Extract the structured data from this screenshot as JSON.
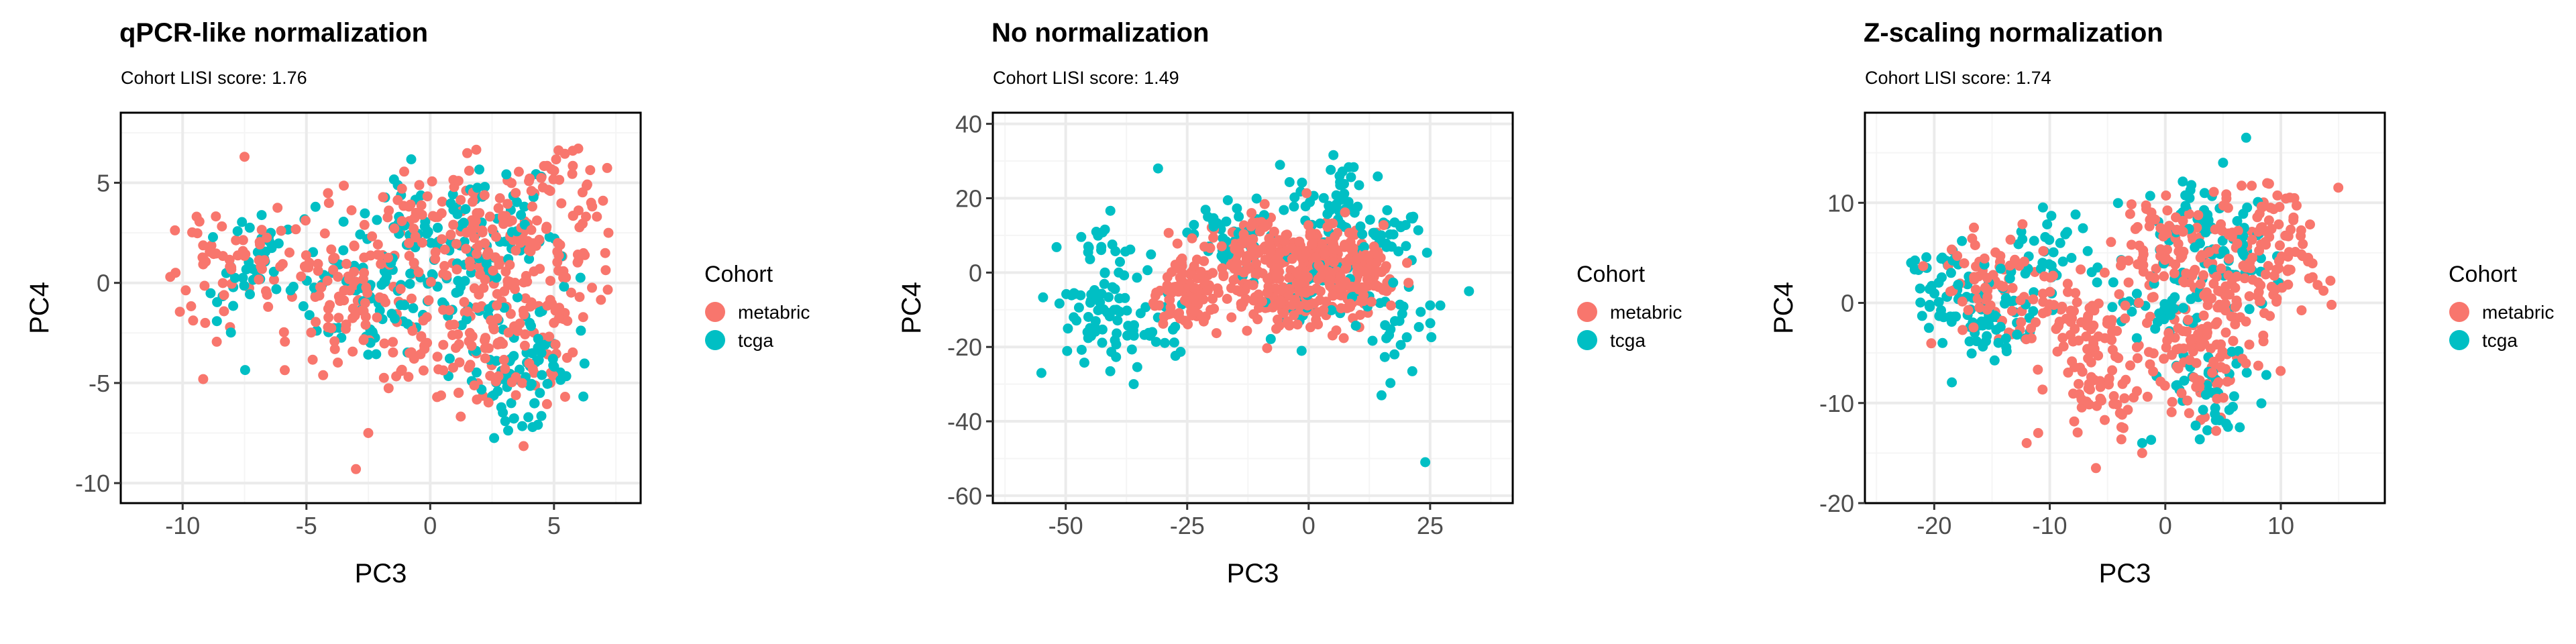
{
  "colors": {
    "metabric": "#F8766D",
    "tcga": "#00BFC4",
    "grid_major": "#ebebeb",
    "grid_minor": "#f5f5f5",
    "panel_border": "#000000"
  },
  "chart_data": [
    {
      "type": "scatter",
      "title": "qPCR-like normalization",
      "subtitle": "Cohort LISI score: 1.76",
      "xlabel": "PC3",
      "ylabel": "PC4",
      "xlim": [
        -12.5,
        8.5
      ],
      "ylim": [
        -11,
        8.5
      ],
      "xticks": [
        -10,
        -5,
        0,
        5
      ],
      "yticks": [
        -10,
        -5,
        0,
        5
      ],
      "grid": true,
      "legend": {
        "title": "Cohort",
        "placement": "right",
        "entries": [
          "metabric",
          "tcga"
        ]
      },
      "series": [
        {
          "name": "metabric",
          "centers": [
            [
              -8,
              1
            ],
            [
              -3,
              0.5
            ],
            [
              0,
              3
            ],
            [
              3,
              2
            ],
            [
              4,
              -1
            ],
            [
              2,
              -4
            ],
            [
              -2,
              -2
            ],
            [
              5,
              4
            ]
          ],
          "spread": [
            2.0,
            2.2
          ],
          "extent": [
            [
              -10.5,
              7.2
            ],
            [
              -9.5,
              6.8
            ]
          ],
          "extras": [
            [
              -10.5,
              0.3
            ],
            [
              -7.5,
              6.3
            ],
            [
              -3,
              -9.3
            ],
            [
              -2.5,
              -7.5
            ],
            [
              6.5,
              4
            ],
            [
              7.2,
              2.5
            ]
          ]
        },
        {
          "name": "tcga",
          "centers": [
            [
              -7,
              1
            ],
            [
              -3,
              -1
            ],
            [
              1,
              1
            ],
            [
              3,
              3
            ],
            [
              3,
              -3
            ],
            [
              4,
              -5
            ],
            [
              -1,
              2
            ]
          ],
          "spread": [
            1.8,
            2.0
          ],
          "extent": [
            [
              -9.5,
              6.5
            ],
            [
              -7.8,
              6.3
            ]
          ],
          "extras": []
        }
      ],
      "approx_points_per_series": [
        520,
        300
      ]
    },
    {
      "type": "scatter",
      "title": "No normalization",
      "subtitle": "Cohort LISI score: 1.49",
      "xlabel": "PC3",
      "ylabel": "PC4",
      "xlim": [
        -65,
        42
      ],
      "ylim": [
        -62,
        43
      ],
      "xticks": [
        -50,
        -25,
        0,
        25
      ],
      "yticks": [
        -60,
        -40,
        -20,
        0,
        20,
        40
      ],
      "grid": true,
      "legend": {
        "title": "Cohort",
        "placement": "right",
        "entries": [
          "metabric",
          "tcga"
        ]
      },
      "series": [
        {
          "name": "metabric",
          "centers": [
            [
              -25,
              -5
            ],
            [
              -12,
              5
            ],
            [
              0,
              5
            ],
            [
              5,
              -5
            ],
            [
              10,
              2
            ],
            [
              -5,
              -8
            ]
          ],
          "spread": [
            6,
            7
          ],
          "extent": [
            [
              -32,
              22
            ],
            [
              -22,
              23
            ]
          ],
          "extras": []
        },
        {
          "name": "tcga",
          "centers": [
            [
              -42,
              5
            ],
            [
              -45,
              -10
            ],
            [
              -35,
              -15
            ],
            [
              5,
              20
            ],
            [
              15,
              10
            ],
            [
              20,
              -15
            ],
            [
              0,
              -5
            ],
            [
              -15,
              10
            ]
          ],
          "spread": [
            6,
            8
          ],
          "extent": [
            [
              -57,
              35
            ],
            [
              -30,
              33
            ]
          ],
          "extras": [
            [
              24,
              -51
            ],
            [
              -55,
              -27
            ],
            [
              -36,
              -30
            ],
            [
              15,
              -33
            ],
            [
              33,
              -5
            ],
            [
              -31,
              28
            ]
          ]
        }
      ],
      "approx_points_per_series": [
        520,
        300
      ]
    },
    {
      "type": "scatter",
      "title": "Z-scaling normalization",
      "subtitle": "Cohort LISI score: 1.74",
      "xlabel": "PC3",
      "ylabel": "PC4",
      "xlim": [
        -26,
        19
      ],
      "ylim": [
        -20,
        19
      ],
      "xticks": [
        -20,
        -10,
        0,
        10
      ],
      "yticks": [
        -20,
        -10,
        0,
        10
      ],
      "grid": true,
      "legend": {
        "title": "Cohort",
        "placement": "right",
        "entries": [
          "metabric",
          "tcga"
        ]
      },
      "series": [
        {
          "name": "metabric",
          "centers": [
            [
              -15,
              2
            ],
            [
              -8,
              -2
            ],
            [
              0,
              5
            ],
            [
              5,
              0
            ],
            [
              3,
              -6
            ],
            [
              8,
              8
            ],
            [
              -5,
              -8
            ],
            [
              10,
              3
            ]
          ],
          "spread": [
            3.2,
            3.5
          ],
          "extent": [
            [
              -21,
              15
            ],
            [
              -17,
              12
            ]
          ],
          "extras": [
            [
              -12,
              -14
            ],
            [
              -6,
              -16.5
            ],
            [
              -2,
              -15
            ],
            [
              -11,
              -13
            ]
          ]
        },
        {
          "name": "tcga",
          "centers": [
            [
              -19,
              2
            ],
            [
              -15,
              -2
            ],
            [
              0,
              0
            ],
            [
              4,
              -8
            ],
            [
              6,
              5
            ],
            [
              -10,
              5
            ],
            [
              2,
              8
            ]
          ],
          "spread": [
            3.0,
            3.2
          ],
          "extent": [
            [
              -22,
              14
            ],
            [
              -15,
              16.5
            ]
          ],
          "extras": [
            [
              7,
              16.5
            ],
            [
              5,
              14
            ],
            [
              -2,
              -14
            ],
            [
              -22,
              4
            ]
          ]
        }
      ],
      "approx_points_per_series": [
        520,
        300
      ]
    }
  ]
}
